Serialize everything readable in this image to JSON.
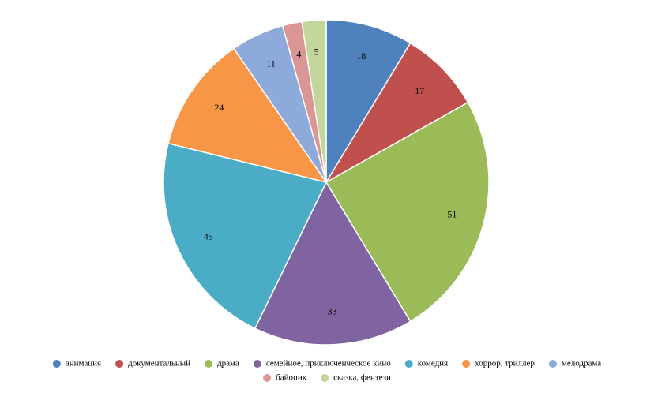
{
  "chart_data": {
    "type": "pie",
    "categories": [
      "анимация",
      "документальный",
      "драма",
      "семейное, приключенческое кино",
      "комедия",
      "хоррор, триллер",
      "мелодрама",
      "байопик",
      "сказка, фентези"
    ],
    "values": [
      18,
      17,
      51,
      33,
      45,
      24,
      11,
      4,
      5
    ],
    "colors": [
      "#4f81bd",
      "#c0504d",
      "#9bbb59",
      "#8064a2",
      "#4bacc6",
      "#f79646",
      "#8eaadb",
      "#d99694",
      "#c3d69b"
    ]
  }
}
